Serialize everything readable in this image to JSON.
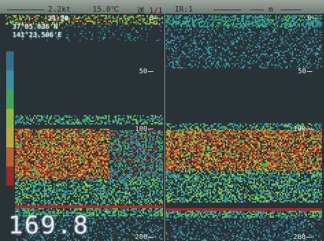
{
  "status_bar": {
    "range": "2.2kt",
    "temperature": "15.0℃",
    "mode": "送 1/1",
    "gain": "IR:1",
    "unit": "m"
  },
  "gps": {
    "time": "21:20",
    "latitude": "37°05.036'N",
    "longitude": "141°23.506'E"
  },
  "depth_scale": {
    "left": [
      "0",
      "50",
      "100",
      "200"
    ],
    "right": [
      "0",
      "50",
      "100",
      "200"
    ]
  },
  "depth_readout": "169.8",
  "colors": {
    "background": "#2a3338",
    "weak": "#3a8a9a",
    "medium": "#3fbf5a",
    "strong": "#d8c03a",
    "very_strong": "#b02a26"
  },
  "color_scale": [
    "#2a3338",
    "#2e7fa0",
    "#3aa6b0",
    "#3fbf5a",
    "#9fd040",
    "#d8c03a",
    "#d86a2a",
    "#b02a26"
  ]
}
